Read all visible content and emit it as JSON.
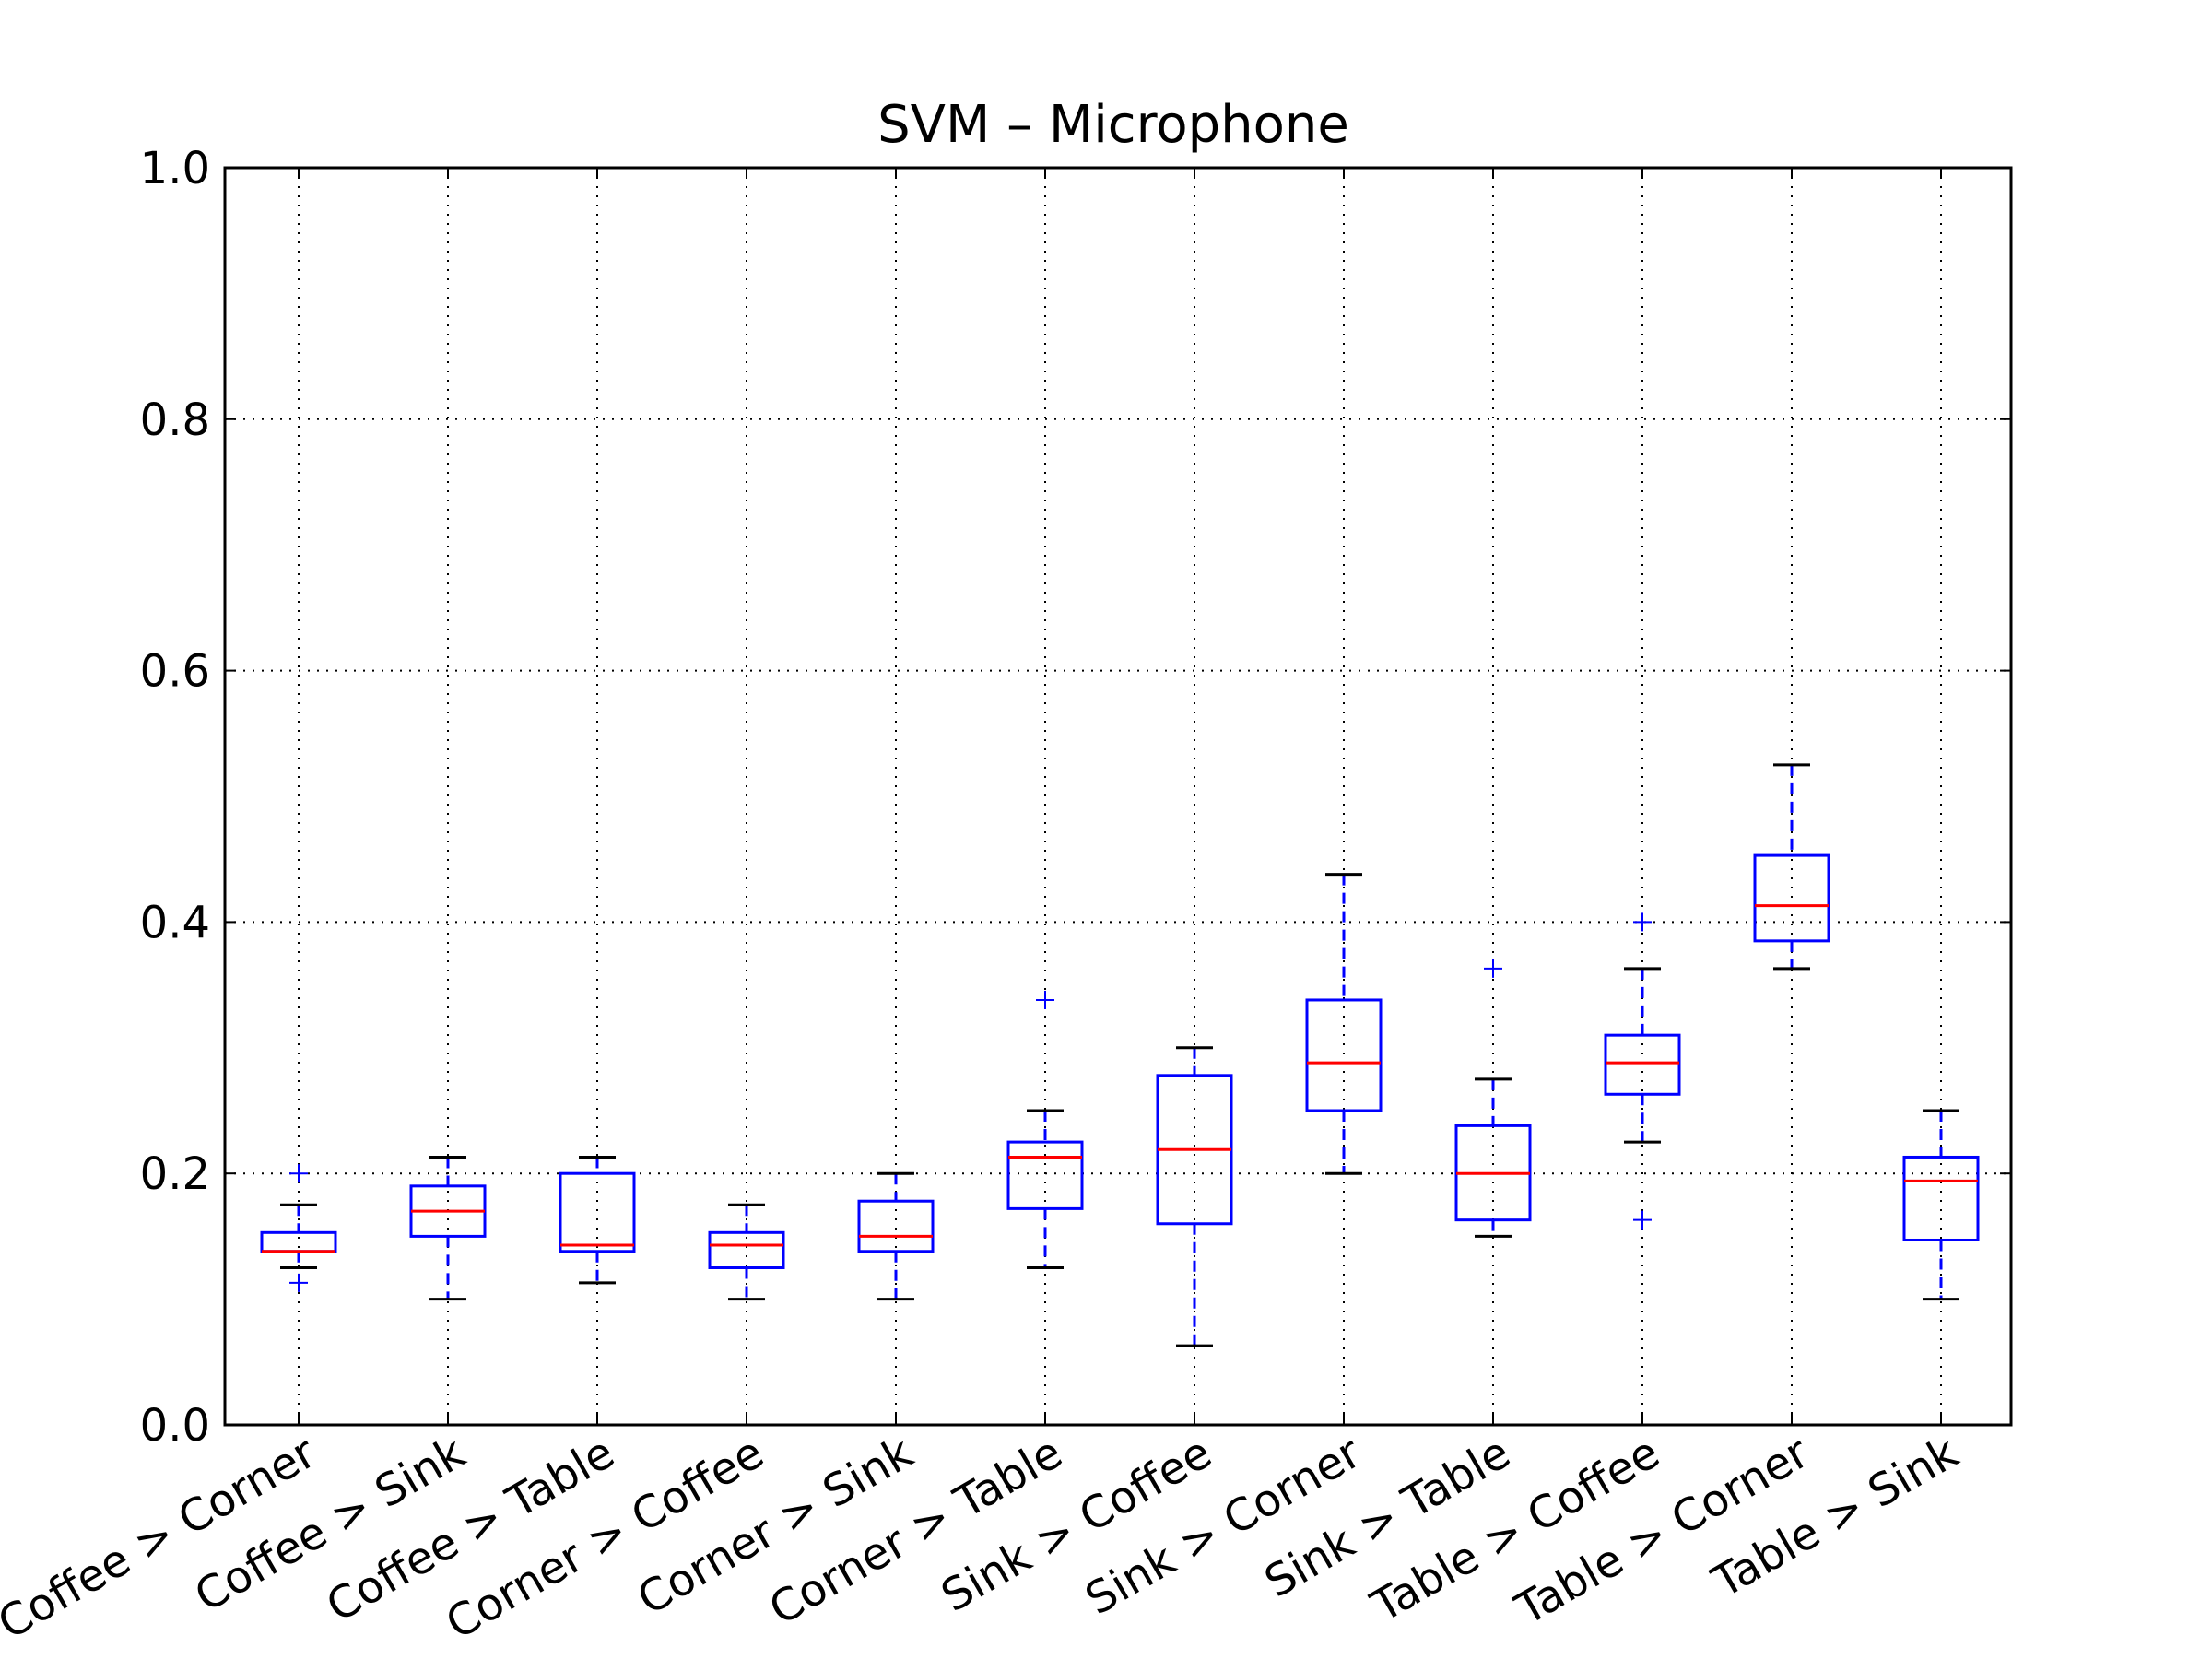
{
  "chart_data": {
    "type": "box",
    "title": "SVM – Microphone",
    "xlabel": "",
    "ylabel": "",
    "ylim": [
      0.0,
      1.0
    ],
    "yticks": [
      "0.0",
      "0.2",
      "0.4",
      "0.6",
      "0.8",
      "1.0"
    ],
    "grid": true,
    "categories": [
      "Coffee > Corner",
      "Coffee > Sink",
      "Coffee > Table",
      "Corner > Coffee",
      "Corner > Sink",
      "Corner > Table",
      "Sink > Coffee",
      "Sink > Corner",
      "Sink > Table",
      "Table > Coffee",
      "Table > Corner",
      "Table > Sink"
    ],
    "boxes": [
      {
        "whisker_low": 0.125,
        "q1": 0.138,
        "median": 0.138,
        "q3": 0.153,
        "whisker_high": 0.175,
        "outliers": [
          0.2,
          0.113
        ]
      },
      {
        "whisker_low": 0.1,
        "q1": 0.15,
        "median": 0.17,
        "q3": 0.19,
        "whisker_high": 0.213,
        "outliers": []
      },
      {
        "whisker_low": 0.113,
        "q1": 0.138,
        "median": 0.143,
        "q3": 0.2,
        "whisker_high": 0.213,
        "outliers": []
      },
      {
        "whisker_low": 0.1,
        "q1": 0.125,
        "median": 0.143,
        "q3": 0.153,
        "whisker_high": 0.175,
        "outliers": []
      },
      {
        "whisker_low": 0.1,
        "q1": 0.138,
        "median": 0.15,
        "q3": 0.178,
        "whisker_high": 0.2,
        "outliers": []
      },
      {
        "whisker_low": 0.125,
        "q1": 0.172,
        "median": 0.213,
        "q3": 0.225,
        "whisker_high": 0.25,
        "outliers": [
          0.338
        ]
      },
      {
        "whisker_low": 0.063,
        "q1": 0.16,
        "median": 0.219,
        "q3": 0.278,
        "whisker_high": 0.3,
        "outliers": []
      },
      {
        "whisker_low": 0.2,
        "q1": 0.25,
        "median": 0.288,
        "q3": 0.338,
        "whisker_high": 0.438,
        "outliers": []
      },
      {
        "whisker_low": 0.15,
        "q1": 0.163,
        "median": 0.2,
        "q3": 0.238,
        "whisker_high": 0.275,
        "outliers": [
          0.363
        ]
      },
      {
        "whisker_low": 0.225,
        "q1": 0.263,
        "median": 0.288,
        "q3": 0.31,
        "whisker_high": 0.363,
        "outliers": [
          0.4,
          0.163
        ]
      },
      {
        "whisker_low": 0.363,
        "q1": 0.385,
        "median": 0.413,
        "q3": 0.453,
        "whisker_high": 0.525,
        "outliers": []
      },
      {
        "whisker_low": 0.1,
        "q1": 0.147,
        "median": 0.194,
        "q3": 0.213,
        "whisker_high": 0.25,
        "outliers": []
      }
    ],
    "colors": {
      "box": "#0000ff",
      "median": "#ff0000",
      "whisker_cap": "#000000",
      "grid": "#000000"
    }
  }
}
